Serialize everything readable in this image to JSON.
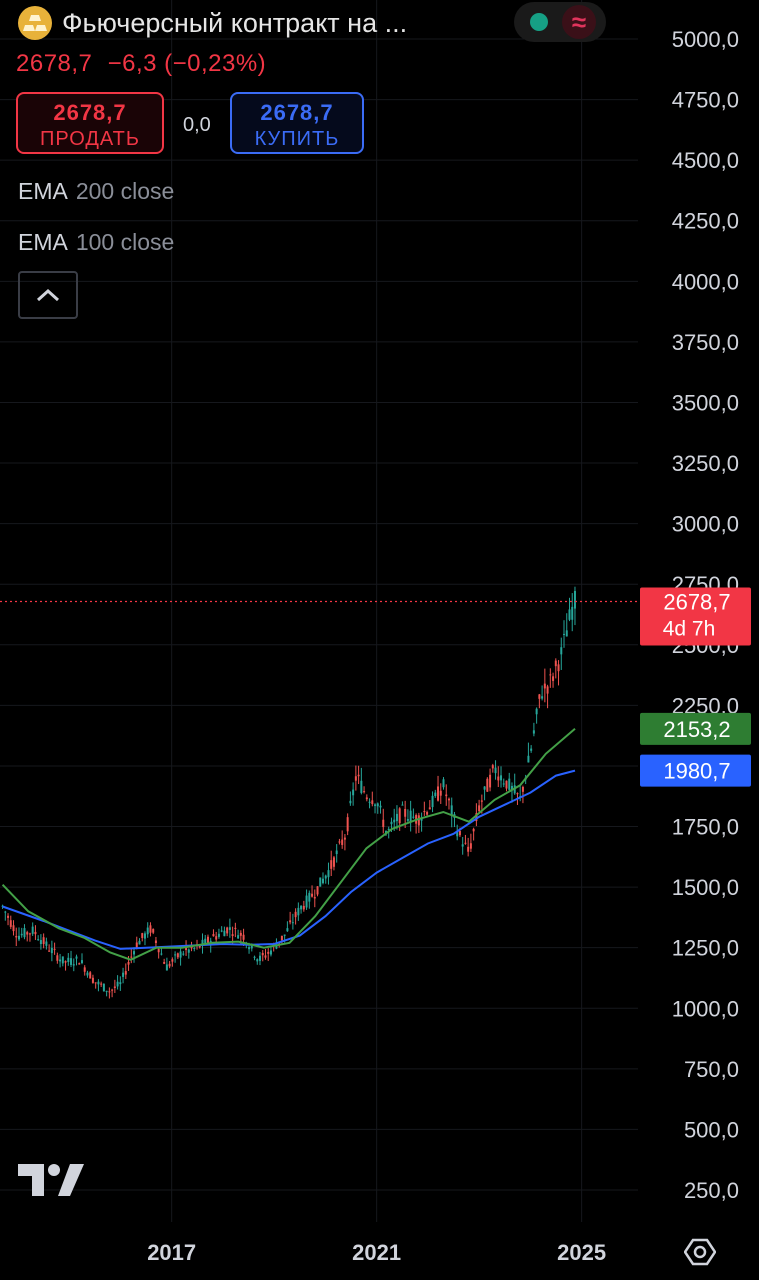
{
  "header": {
    "title": "Фьючерсный контракт на ...",
    "last_price": "2678,7",
    "change": "−6,3 (−0,23%)",
    "logo_icon": "gold-bars-icon"
  },
  "status": {
    "market_dot_color": "#16a085",
    "wave_symbol": "≈",
    "wave_color": "#e0345c"
  },
  "trade": {
    "sell_value": "2678,7",
    "sell_label": "ПРОДАТЬ",
    "spread": "0,0",
    "buy_value": "2678,7",
    "buy_label": "КУПИТЬ"
  },
  "indicators": [
    {
      "name": "EMA",
      "params": "200 close",
      "color": "#2962ff"
    },
    {
      "name": "EMA",
      "params": "100 close",
      "color": "#43a047"
    }
  ],
  "colors": {
    "up": "#26a69a",
    "down": "#ef5350",
    "last_price_bg": "#f23645",
    "ema200_bg": "#2962ff",
    "ema100_bg": "#2e7d32",
    "buy": "#3b6cf6",
    "sell": "#f23645"
  },
  "chart_data": {
    "type": "candlestick",
    "ylim": [
      100,
      5100
    ],
    "y_ticks": [
      "5000,0",
      "4750,0",
      "4500,0",
      "4250,0",
      "4000,0",
      "3750,0",
      "3500,0",
      "3250,0",
      "3000,0",
      "2750,0",
      "2500,0",
      "2250,0",
      "2000,0",
      "1750,0",
      "1500,0",
      "1250,0",
      "1000,0",
      "750,0",
      "500,0",
      "250,0"
    ],
    "y_tick_values": [
      5000,
      4750,
      4500,
      4250,
      4000,
      3750,
      3500,
      3250,
      3000,
      2750,
      2500,
      2250,
      2000,
      1750,
      1500,
      1250,
      1000,
      750,
      500,
      250
    ],
    "x_ticks": [
      "2017",
      "2021",
      "2025"
    ],
    "x_tick_values": [
      2017,
      2021,
      2025
    ],
    "xlim": [
      2013.65,
      2026.1
    ],
    "series": [
      {
        "name": "Price",
        "points": [
          [
            2013.7,
            1420
          ],
          [
            2014.0,
            1300
          ],
          [
            2014.3,
            1320
          ],
          [
            2014.6,
            1250
          ],
          [
            2014.9,
            1190
          ],
          [
            2015.2,
            1200
          ],
          [
            2015.5,
            1110
          ],
          [
            2015.8,
            1070
          ],
          [
            2016.0,
            1100
          ],
          [
            2016.3,
            1260
          ],
          [
            2016.6,
            1330
          ],
          [
            2016.9,
            1170
          ],
          [
            2017.2,
            1230
          ],
          [
            2017.5,
            1250
          ],
          [
            2017.8,
            1290
          ],
          [
            2018.1,
            1330
          ],
          [
            2018.4,
            1300
          ],
          [
            2018.7,
            1200
          ],
          [
            2018.9,
            1230
          ],
          [
            2019.2,
            1300
          ],
          [
            2019.5,
            1410
          ],
          [
            2019.8,
            1480
          ],
          [
            2020.1,
            1580
          ],
          [
            2020.4,
            1720
          ],
          [
            2020.6,
            1960
          ],
          [
            2020.8,
            1880
          ],
          [
            2021.0,
            1860
          ],
          [
            2021.2,
            1720
          ],
          [
            2021.5,
            1810
          ],
          [
            2021.8,
            1780
          ],
          [
            2022.1,
            1850
          ],
          [
            2022.3,
            1920
          ],
          [
            2022.6,
            1720
          ],
          [
            2022.8,
            1640
          ],
          [
            2023.0,
            1830
          ],
          [
            2023.3,
            1990
          ],
          [
            2023.5,
            1940
          ],
          [
            2023.8,
            1860
          ],
          [
            2024.0,
            2050
          ],
          [
            2024.2,
            2300
          ],
          [
            2024.4,
            2350
          ],
          [
            2024.6,
            2460
          ],
          [
            2024.8,
            2640
          ],
          [
            2024.87,
            2678.7
          ]
        ]
      },
      {
        "name": "EMA 200 close",
        "points": [
          [
            2013.7,
            1420
          ],
          [
            2014.5,
            1360
          ],
          [
            2015.0,
            1320
          ],
          [
            2015.5,
            1280
          ],
          [
            2016.0,
            1245
          ],
          [
            2016.5,
            1250
          ],
          [
            2017.0,
            1255
          ],
          [
            2017.5,
            1260
          ],
          [
            2018.0,
            1265
          ],
          [
            2018.5,
            1262
          ],
          [
            2019.0,
            1265
          ],
          [
            2019.5,
            1300
          ],
          [
            2020.0,
            1380
          ],
          [
            2020.5,
            1480
          ],
          [
            2021.0,
            1560
          ],
          [
            2021.5,
            1620
          ],
          [
            2022.0,
            1680
          ],
          [
            2022.5,
            1720
          ],
          [
            2023.0,
            1790
          ],
          [
            2023.5,
            1840
          ],
          [
            2024.0,
            1890
          ],
          [
            2024.5,
            1960
          ],
          [
            2024.87,
            1980.7
          ]
        ]
      },
      {
        "name": "EMA 100 close",
        "points": [
          [
            2013.7,
            1510
          ],
          [
            2014.2,
            1400
          ],
          [
            2014.8,
            1330
          ],
          [
            2015.3,
            1290
          ],
          [
            2015.8,
            1230
          ],
          [
            2016.2,
            1200
          ],
          [
            2016.7,
            1250
          ],
          [
            2017.2,
            1250
          ],
          [
            2017.8,
            1270
          ],
          [
            2018.3,
            1275
          ],
          [
            2018.8,
            1250
          ],
          [
            2019.3,
            1270
          ],
          [
            2019.8,
            1380
          ],
          [
            2020.3,
            1520
          ],
          [
            2020.8,
            1660
          ],
          [
            2021.3,
            1740
          ],
          [
            2021.8,
            1780
          ],
          [
            2022.3,
            1810
          ],
          [
            2022.8,
            1770
          ],
          [
            2023.3,
            1860
          ],
          [
            2023.8,
            1920
          ],
          [
            2024.3,
            2050
          ],
          [
            2024.87,
            2153.2
          ]
        ]
      }
    ],
    "last_price": 2678.7,
    "last_price_label": "2678,7",
    "countdown": "4d 7h",
    "ema200_value": 1980.7,
    "ema200_label": "1980,7",
    "ema100_value": 2153.2,
    "ema100_label": "2153,2"
  }
}
